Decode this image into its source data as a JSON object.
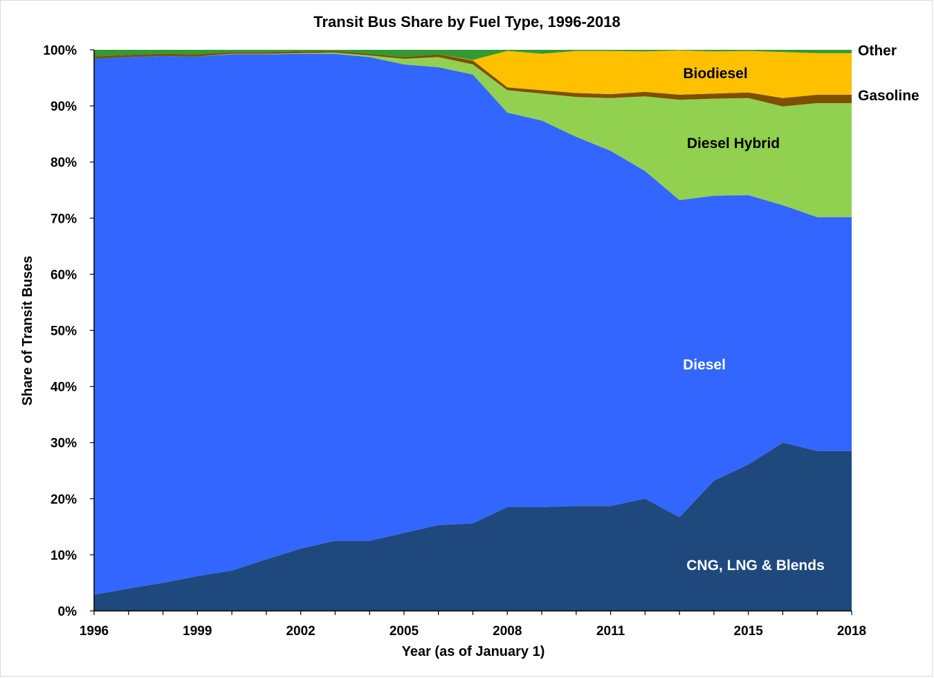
{
  "chart_data": {
    "type": "area",
    "stacked": true,
    "title": "Transit Bus Share by Fuel Type, 1996-2018",
    "xlabel": "Year (as of January 1)",
    "ylabel": "Share of Transit Buses",
    "x_tick_labels": [
      "1996",
      "1999",
      "2002",
      "2005",
      "2008",
      "2011",
      "2015",
      "2018"
    ],
    "y_tick_labels": [
      "0%",
      "10%",
      "20%",
      "30%",
      "40%",
      "50%",
      "60%",
      "70%",
      "80%",
      "90%",
      "100%"
    ],
    "ylim": [
      0,
      100
    ],
    "grid": false,
    "legend": "none (series labeled directly on chart)",
    "x_position_years": [
      1996,
      1997,
      1998,
      1999,
      2000,
      2001,
      2002,
      2003,
      2004,
      2005,
      2006,
      2007,
      2008,
      2009,
      2010,
      2011,
      2012,
      2013,
      2014,
      2015,
      2016,
      2017,
      2018
    ],
    "series": [
      {
        "name": "CNG, LNG & Blends",
        "color": "#1f497d",
        "label_color": "#ffffff",
        "values": [
          2.9,
          4.0,
          5.0,
          6.2,
          7.2,
          9.2,
          11.1,
          12.5,
          12.5,
          13.9,
          15.3,
          15.6,
          18.5,
          18.5,
          18.7,
          18.7,
          20.0,
          16.7,
          23.2,
          26.1,
          30.0,
          28.5,
          28.5
        ]
      },
      {
        "name": "Diesel",
        "color": "#3366ff",
        "label_color": "#ffffff",
        "values": [
          95.5,
          94.7,
          93.9,
          92.6,
          92.0,
          90.0,
          88.2,
          86.8,
          86.2,
          83.5,
          81.6,
          80.0,
          70.3,
          68.9,
          65.8,
          63.3,
          58.4,
          56.5,
          50.8,
          48.0,
          42.3,
          41.7,
          41.7
        ]
      },
      {
        "name": "Diesel Hybrid",
        "color": "#92d050",
        "label_color": "#000000",
        "values": [
          0.0,
          0.0,
          0.0,
          0.0,
          0.1,
          0.1,
          0.1,
          0.2,
          0.3,
          1.0,
          1.8,
          1.8,
          4.0,
          4.8,
          7.1,
          9.4,
          13.3,
          17.9,
          17.3,
          17.3,
          17.6,
          20.3,
          20.3
        ]
      },
      {
        "name": "Gasoline",
        "color": "#7f4f00",
        "label_color": "#000000",
        "values": [
          0.4,
          0.4,
          0.4,
          0.4,
          0.3,
          0.3,
          0.3,
          0.3,
          0.3,
          0.3,
          0.5,
          0.7,
          0.5,
          0.6,
          0.7,
          0.7,
          0.8,
          0.9,
          0.9,
          1.0,
          1.5,
          1.5,
          1.5
        ]
      },
      {
        "name": "Biodiesel",
        "color": "#ffc000",
        "label_color": "#000000",
        "values": [
          0.0,
          0.0,
          0.0,
          0.0,
          0.0,
          0.0,
          0.0,
          0.0,
          0.0,
          0.0,
          0.0,
          0.1,
          6.5,
          6.5,
          7.5,
          7.7,
          7.2,
          7.9,
          7.5,
          7.4,
          8.2,
          7.4,
          7.4
        ]
      },
      {
        "name": "Other",
        "color": "#339933",
        "label_color": "#000000",
        "values": [
          1.2,
          0.9,
          0.7,
          0.8,
          0.4,
          0.4,
          0.3,
          0.2,
          0.7,
          1.3,
          0.8,
          1.8,
          0.2,
          0.7,
          0.2,
          0.2,
          0.3,
          0.1,
          0.3,
          0.2,
          0.4,
          0.6,
          0.6
        ]
      }
    ]
  }
}
